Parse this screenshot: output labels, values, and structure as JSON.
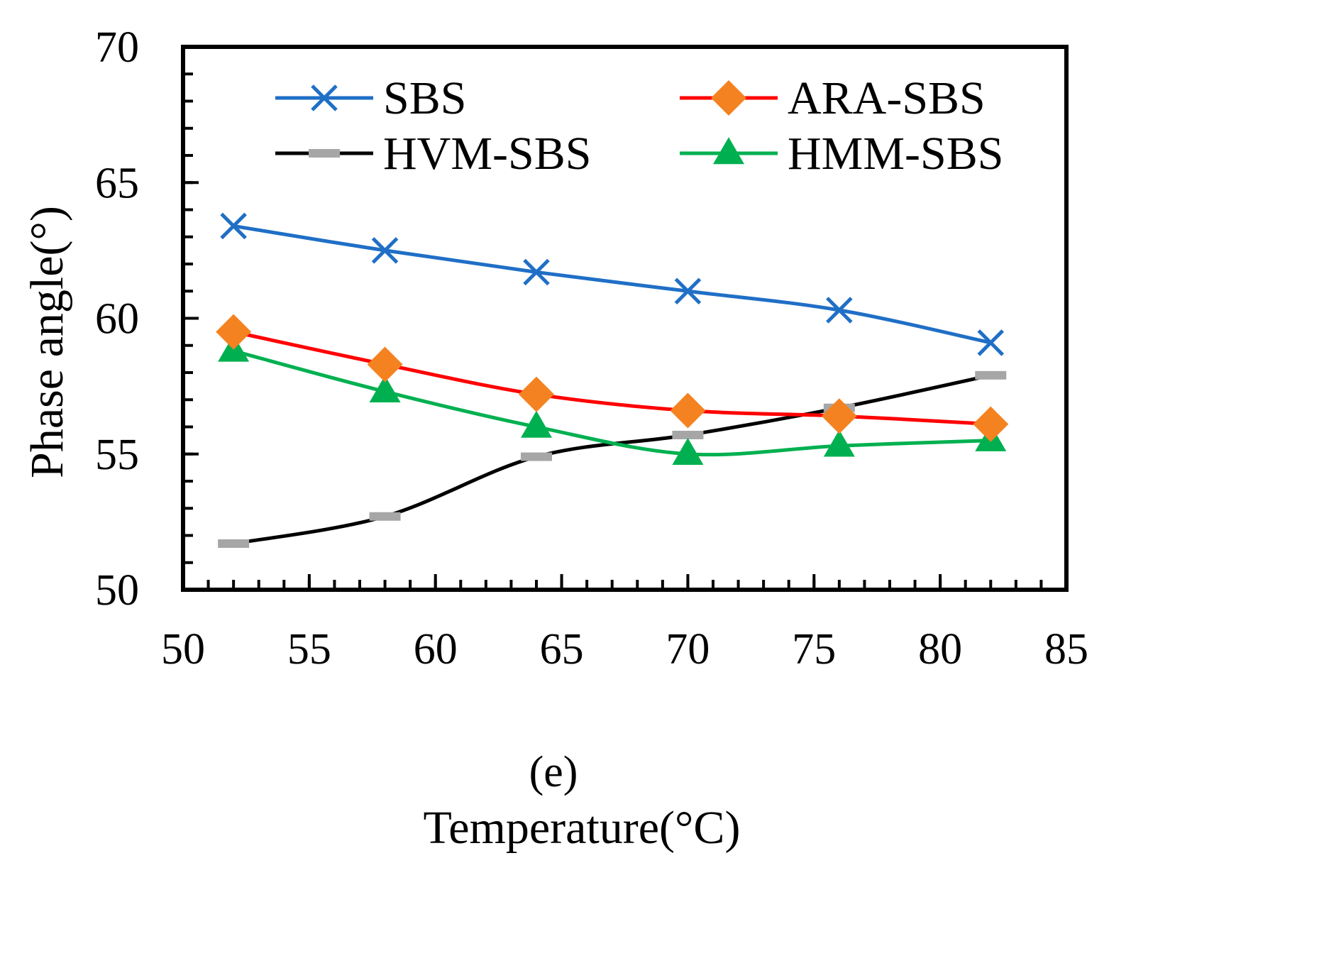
{
  "chart_data": {
    "type": "line",
    "title": "",
    "panel_label": "(e)",
    "xlabel": "Temperature(°C)",
    "ylabel": "Phase angle(°)",
    "xlim": [
      50,
      85
    ],
    "ylim": [
      50,
      70
    ],
    "x_major_ticks": [
      50,
      55,
      60,
      65,
      70,
      75,
      80,
      85
    ],
    "x_minor_step": 1,
    "y_major_ticks": [
      50,
      55,
      60,
      65,
      70
    ],
    "y_minor_step": 1,
    "grid": false,
    "legend_position": "top",
    "x": [
      52,
      58,
      64,
      70,
      76,
      82
    ],
    "series": [
      {
        "name": "SBS",
        "color": "#1f6fc6",
        "marker": "x",
        "marker_color": "#1f6fc6",
        "values": [
          63.4,
          62.5,
          61.7,
          61.0,
          60.3,
          59.1
        ]
      },
      {
        "name": "ARA-SBS",
        "color": "#ff0000",
        "marker": "diamond",
        "marker_color": "#f58220",
        "values": [
          59.5,
          58.3,
          57.2,
          56.6,
          56.4,
          56.1
        ]
      },
      {
        "name": "HVM-SBS",
        "color": "#000000",
        "marker": "dash",
        "marker_color": "#a6a6a6",
        "values": [
          51.7,
          52.7,
          54.9,
          55.7,
          56.7,
          57.9
        ]
      },
      {
        "name": "HMM-SBS",
        "color": "#00b050",
        "marker": "triangle",
        "marker_color": "#00b050",
        "values": [
          58.8,
          57.3,
          56.0,
          55.0,
          55.3,
          55.5
        ]
      }
    ]
  }
}
